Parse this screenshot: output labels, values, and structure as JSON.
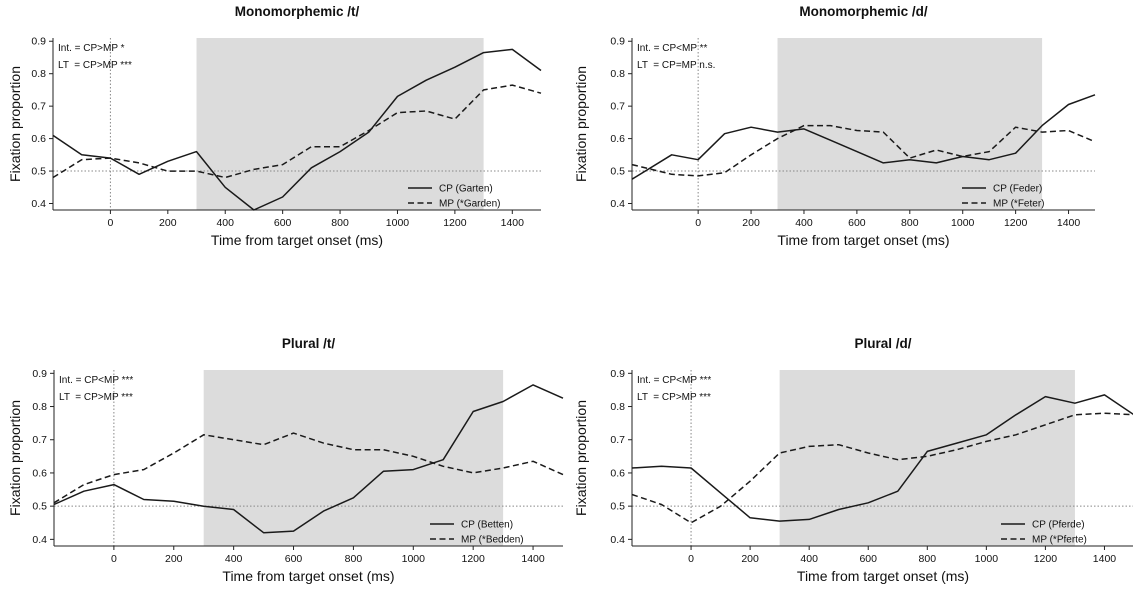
{
  "chart_data": [
    {
      "type": "line",
      "title": "Monomorphemic /t/",
      "xlabel": "Time from target onset (ms)",
      "ylabel": "Fixation proportion",
      "xlim": [
        -200,
        1500
      ],
      "ylim": [
        0.38,
        0.91
      ],
      "xticks": [
        0,
        200,
        400,
        600,
        800,
        1000,
        1200,
        1400
      ],
      "yticks": [
        0.4,
        0.5,
        0.6,
        0.7,
        0.8,
        0.9
      ],
      "shaded_region": [
        300,
        1300
      ],
      "reference_line_y": 0.5,
      "reference_line_x": 0,
      "annotations": [
        "Int. = CP>MP *",
        "LT  = CP>MP ***"
      ],
      "legend_position": "bottom-right",
      "x": [
        -200,
        -100,
        0,
        100,
        200,
        300,
        400,
        500,
        600,
        700,
        800,
        900,
        1000,
        1100,
        1200,
        1300,
        1400,
        1500
      ],
      "series": [
        {
          "name": "CP (Garten)",
          "style": "solid",
          "values": [
            0.61,
            0.55,
            0.54,
            0.49,
            0.53,
            0.56,
            0.45,
            0.38,
            0.42,
            0.51,
            0.56,
            0.62,
            0.73,
            0.78,
            0.82,
            0.865,
            0.875,
            0.81
          ]
        },
        {
          "name": "MP (*Garden)",
          "style": "dashed",
          "values": [
            0.48,
            0.535,
            0.54,
            0.525,
            0.5,
            0.5,
            0.48,
            0.505,
            0.52,
            0.575,
            0.575,
            0.625,
            0.68,
            0.685,
            0.66,
            0.75,
            0.765,
            0.74
          ]
        }
      ]
    },
    {
      "type": "line",
      "title": "Monomorphemic /d/",
      "xlabel": "Time from target onset (ms)",
      "ylabel": "Fixation proportion",
      "xlim": [
        -250,
        1500
      ],
      "ylim": [
        0.38,
        0.91
      ],
      "xticks": [
        0,
        200,
        400,
        600,
        800,
        1000,
        1200,
        1400
      ],
      "yticks": [
        0.4,
        0.5,
        0.6,
        0.7,
        0.8,
        0.9
      ],
      "shaded_region": [
        300,
        1300
      ],
      "reference_line_y": 0.5,
      "reference_line_x": 0,
      "annotations": [
        "Int. = CP<MP **",
        "LT  = CP=MP n.s."
      ],
      "legend_position": "bottom-right",
      "x": [
        -250,
        -100,
        0,
        100,
        200,
        300,
        400,
        500,
        600,
        700,
        800,
        900,
        1000,
        1100,
        1200,
        1300,
        1400,
        1500
      ],
      "series": [
        {
          "name": "CP (Feder)",
          "style": "solid",
          "values": [
            0.475,
            0.55,
            0.535,
            0.615,
            0.635,
            0.62,
            0.63,
            0.595,
            0.56,
            0.525,
            0.535,
            0.525,
            0.545,
            0.535,
            0.555,
            0.64,
            0.705,
            0.735
          ]
        },
        {
          "name": "MP (*Feter)",
          "style": "dashed",
          "values": [
            0.52,
            0.49,
            0.485,
            0.495,
            0.55,
            0.6,
            0.64,
            0.64,
            0.625,
            0.62,
            0.54,
            0.565,
            0.545,
            0.56,
            0.635,
            0.62,
            0.625,
            0.59
          ]
        }
      ]
    },
    {
      "type": "line",
      "title": "Plural /t/",
      "xlabel": "Time from target onset (ms)",
      "ylabel": "Fixation proportion",
      "xlim": [
        -200,
        1500
      ],
      "ylim": [
        0.38,
        0.91
      ],
      "xticks": [
        0,
        200,
        400,
        600,
        800,
        1000,
        1200,
        1400
      ],
      "yticks": [
        0.4,
        0.5,
        0.6,
        0.7,
        0.8,
        0.9
      ],
      "shaded_region": [
        300,
        1300
      ],
      "reference_line_y": 0.5,
      "reference_line_x": 0,
      "annotations": [
        "Int. = CP<MP ***",
        "LT  = CP>MP ***"
      ],
      "legend_position": "bottom-right",
      "x": [
        -200,
        -100,
        0,
        100,
        200,
        300,
        400,
        500,
        600,
        700,
        800,
        900,
        1000,
        1100,
        1200,
        1300,
        1400,
        1500
      ],
      "series": [
        {
          "name": "CP (Betten)",
          "style": "solid",
          "values": [
            0.505,
            0.545,
            0.565,
            0.52,
            0.515,
            0.5,
            0.49,
            0.42,
            0.425,
            0.485,
            0.525,
            0.605,
            0.61,
            0.64,
            0.785,
            0.815,
            0.865,
            0.825
          ]
        },
        {
          "name": "MP (*Bedden)",
          "style": "dashed",
          "values": [
            0.51,
            0.565,
            0.595,
            0.61,
            0.66,
            0.715,
            0.7,
            0.685,
            0.72,
            0.69,
            0.67,
            0.67,
            0.65,
            0.62,
            0.6,
            0.615,
            0.635,
            0.595
          ]
        }
      ]
    },
    {
      "type": "line",
      "title": "Plural /d/",
      "xlabel": "Time from target onset (ms)",
      "ylabel": "Fixation proportion",
      "xlim": [
        -200,
        1500
      ],
      "ylim": [
        0.38,
        0.91
      ],
      "xticks": [
        0,
        200,
        400,
        600,
        800,
        1000,
        1200,
        1400
      ],
      "yticks": [
        0.4,
        0.5,
        0.6,
        0.7,
        0.8,
        0.9
      ],
      "shaded_region": [
        300,
        1300
      ],
      "reference_line_y": 0.5,
      "reference_line_x": 0,
      "annotations": [
        "Int. = CP<MP ***",
        "LT  = CP>MP ***"
      ],
      "legend_position": "bottom-right",
      "x": [
        -200,
        -100,
        0,
        100,
        200,
        300,
        400,
        500,
        600,
        700,
        800,
        900,
        1000,
        1100,
        1200,
        1300,
        1400,
        1500
      ],
      "series": [
        {
          "name": "CP (Pferde)",
          "style": "solid",
          "values": [
            0.615,
            0.62,
            0.615,
            0.54,
            0.465,
            0.455,
            0.46,
            0.49,
            0.51,
            0.545,
            0.665,
            0.69,
            0.715,
            0.775,
            0.83,
            0.81,
            0.835,
            0.775
          ]
        },
        {
          "name": "MP (*Pferte)",
          "style": "dashed",
          "values": [
            0.535,
            0.505,
            0.45,
            0.5,
            0.575,
            0.66,
            0.68,
            0.685,
            0.66,
            0.64,
            0.65,
            0.67,
            0.695,
            0.715,
            0.745,
            0.775,
            0.78,
            0.775
          ]
        }
      ]
    }
  ]
}
